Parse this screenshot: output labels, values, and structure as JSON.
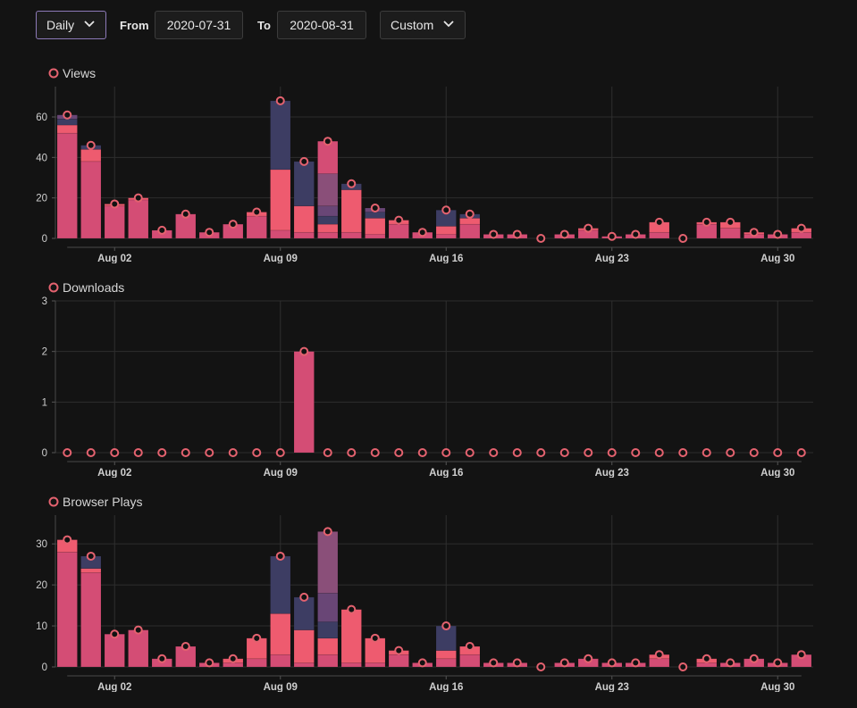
{
  "controls": {
    "period": "Daily",
    "from_label": "From",
    "from_value": "2020-07-31",
    "to_label": "To",
    "to_value": "2020-08-31",
    "range": "Custom"
  },
  "colors": {
    "pink": "#d44d75",
    "salmon": "#ee5b6f",
    "navy": "#3d3d63",
    "purple": "#694676",
    "mauve": "#8a4f79",
    "marker": "#e4626f",
    "grid": "#2e2e2e",
    "background": "#131313"
  },
  "chart_data": [
    {
      "type": "bar",
      "title": "Views",
      "dates": [
        "Jul 31",
        "Aug 01",
        "Aug 02",
        "Aug 03",
        "Aug 04",
        "Aug 05",
        "Aug 06",
        "Aug 07",
        "Aug 08",
        "Aug 09",
        "Aug 10",
        "Aug 11",
        "Aug 12",
        "Aug 13",
        "Aug 14",
        "Aug 15",
        "Aug 16",
        "Aug 17",
        "Aug 18",
        "Aug 19",
        "Aug 20",
        "Aug 21",
        "Aug 22",
        "Aug 23",
        "Aug 24",
        "Aug 25",
        "Aug 26",
        "Aug 27",
        "Aug 28",
        "Aug 29",
        "Aug 30",
        "Aug 31"
      ],
      "x_tick_labels": [
        "Aug 02",
        "Aug 09",
        "Aug 16",
        "Aug 23",
        "Aug 30"
      ],
      "y_ticks": [
        0,
        20,
        40,
        60
      ],
      "ylim": [
        0,
        75
      ],
      "totals": [
        61,
        46,
        17,
        20,
        4,
        12,
        3,
        7,
        13,
        68,
        38,
        48,
        27,
        15,
        9,
        3,
        14,
        12,
        2,
        2,
        0,
        2,
        5,
        1,
        2,
        8,
        0,
        8,
        8,
        3,
        2,
        5
      ],
      "stacks": [
        [
          52,
          4,
          3,
          2
        ],
        [
          38,
          6,
          2
        ],
        [
          16,
          1
        ],
        [
          19,
          1
        ],
        [
          4
        ],
        [
          12
        ],
        [
          3
        ],
        [
          7
        ],
        [
          11,
          2
        ],
        [
          4,
          30,
          34
        ],
        [
          3,
          13,
          22
        ],
        [
          3,
          4,
          4,
          5,
          16,
          16
        ],
        [
          3,
          21,
          3
        ],
        [
          2,
          8,
          3,
          2
        ],
        [
          7,
          2
        ],
        [
          3
        ],
        [
          2,
          4,
          8
        ],
        [
          7,
          3,
          2
        ],
        [
          2
        ],
        [
          2
        ],
        [
          0
        ],
        [
          2
        ],
        [
          4,
          1
        ],
        [
          1
        ],
        [
          2
        ],
        [
          3,
          5
        ],
        [
          0
        ],
        [
          7,
          1
        ],
        [
          5,
          3
        ],
        [
          2,
          1
        ],
        [
          2
        ],
        [
          3,
          2
        ]
      ]
    },
    {
      "type": "bar",
      "title": "Downloads",
      "dates": [
        "Jul 31",
        "Aug 01",
        "Aug 02",
        "Aug 03",
        "Aug 04",
        "Aug 05",
        "Aug 06",
        "Aug 07",
        "Aug 08",
        "Aug 09",
        "Aug 10",
        "Aug 11",
        "Aug 12",
        "Aug 13",
        "Aug 14",
        "Aug 15",
        "Aug 16",
        "Aug 17",
        "Aug 18",
        "Aug 19",
        "Aug 20",
        "Aug 21",
        "Aug 22",
        "Aug 23",
        "Aug 24",
        "Aug 25",
        "Aug 26",
        "Aug 27",
        "Aug 28",
        "Aug 29",
        "Aug 30",
        "Aug 31"
      ],
      "x_tick_labels": [
        "Aug 02",
        "Aug 09",
        "Aug 16",
        "Aug 23",
        "Aug 30"
      ],
      "y_ticks": [
        0,
        1,
        2,
        3
      ],
      "ylim": [
        0,
        3
      ],
      "totals": [
        0,
        0,
        0,
        0,
        0,
        0,
        0,
        0,
        0,
        0,
        2,
        0,
        0,
        0,
        0,
        0,
        0,
        0,
        0,
        0,
        0,
        0,
        0,
        0,
        0,
        0,
        0,
        0,
        0,
        0,
        0,
        0
      ],
      "stacks": [
        [
          0
        ],
        [
          0
        ],
        [
          0
        ],
        [
          0
        ],
        [
          0
        ],
        [
          0
        ],
        [
          0
        ],
        [
          0
        ],
        [
          0
        ],
        [
          0
        ],
        [
          2
        ],
        [
          0
        ],
        [
          0
        ],
        [
          0
        ],
        [
          0
        ],
        [
          0
        ],
        [
          0
        ],
        [
          0
        ],
        [
          0
        ],
        [
          0
        ],
        [
          0
        ],
        [
          0
        ],
        [
          0
        ],
        [
          0
        ],
        [
          0
        ],
        [
          0
        ],
        [
          0
        ],
        [
          0
        ],
        [
          0
        ],
        [
          0
        ],
        [
          0
        ],
        [
          0
        ]
      ]
    },
    {
      "type": "bar",
      "title": "Browser Plays",
      "dates": [
        "Jul 31",
        "Aug 01",
        "Aug 02",
        "Aug 03",
        "Aug 04",
        "Aug 05",
        "Aug 06",
        "Aug 07",
        "Aug 08",
        "Aug 09",
        "Aug 10",
        "Aug 11",
        "Aug 12",
        "Aug 13",
        "Aug 14",
        "Aug 15",
        "Aug 16",
        "Aug 17",
        "Aug 18",
        "Aug 19",
        "Aug 20",
        "Aug 21",
        "Aug 22",
        "Aug 23",
        "Aug 24",
        "Aug 25",
        "Aug 26",
        "Aug 27",
        "Aug 28",
        "Aug 29",
        "Aug 30",
        "Aug 31"
      ],
      "x_tick_labels": [
        "Aug 02",
        "Aug 09",
        "Aug 16",
        "Aug 23",
        "Aug 30"
      ],
      "y_ticks": [
        0,
        10,
        20,
        30
      ],
      "ylim": [
        0,
        37
      ],
      "totals": [
        31,
        27,
        8,
        9,
        2,
        5,
        1,
        2,
        7,
        27,
        17,
        33,
        14,
        7,
        4,
        1,
        10,
        5,
        1,
        1,
        0,
        1,
        2,
        1,
        1,
        3,
        0,
        2,
        1,
        2,
        1,
        3
      ],
      "stacks": [
        [
          28,
          3
        ],
        [
          23,
          1,
          3
        ],
        [
          8
        ],
        [
          9
        ],
        [
          2
        ],
        [
          5
        ],
        [
          1
        ],
        [
          1,
          1
        ],
        [
          2,
          5
        ],
        [
          3,
          10,
          14
        ],
        [
          1,
          8,
          8
        ],
        [
          3,
          4,
          4,
          7,
          15
        ],
        [
          1,
          13
        ],
        [
          1,
          6
        ],
        [
          3,
          1
        ],
        [
          1
        ],
        [
          2,
          2,
          6
        ],
        [
          3,
          2
        ],
        [
          1
        ],
        [
          1
        ],
        [
          0
        ],
        [
          1
        ],
        [
          2
        ],
        [
          1
        ],
        [
          1
        ],
        [
          2,
          1
        ],
        [
          0
        ],
        [
          1,
          1
        ],
        [
          1
        ],
        [
          2
        ],
        [
          1
        ],
        [
          3
        ]
      ]
    }
  ]
}
